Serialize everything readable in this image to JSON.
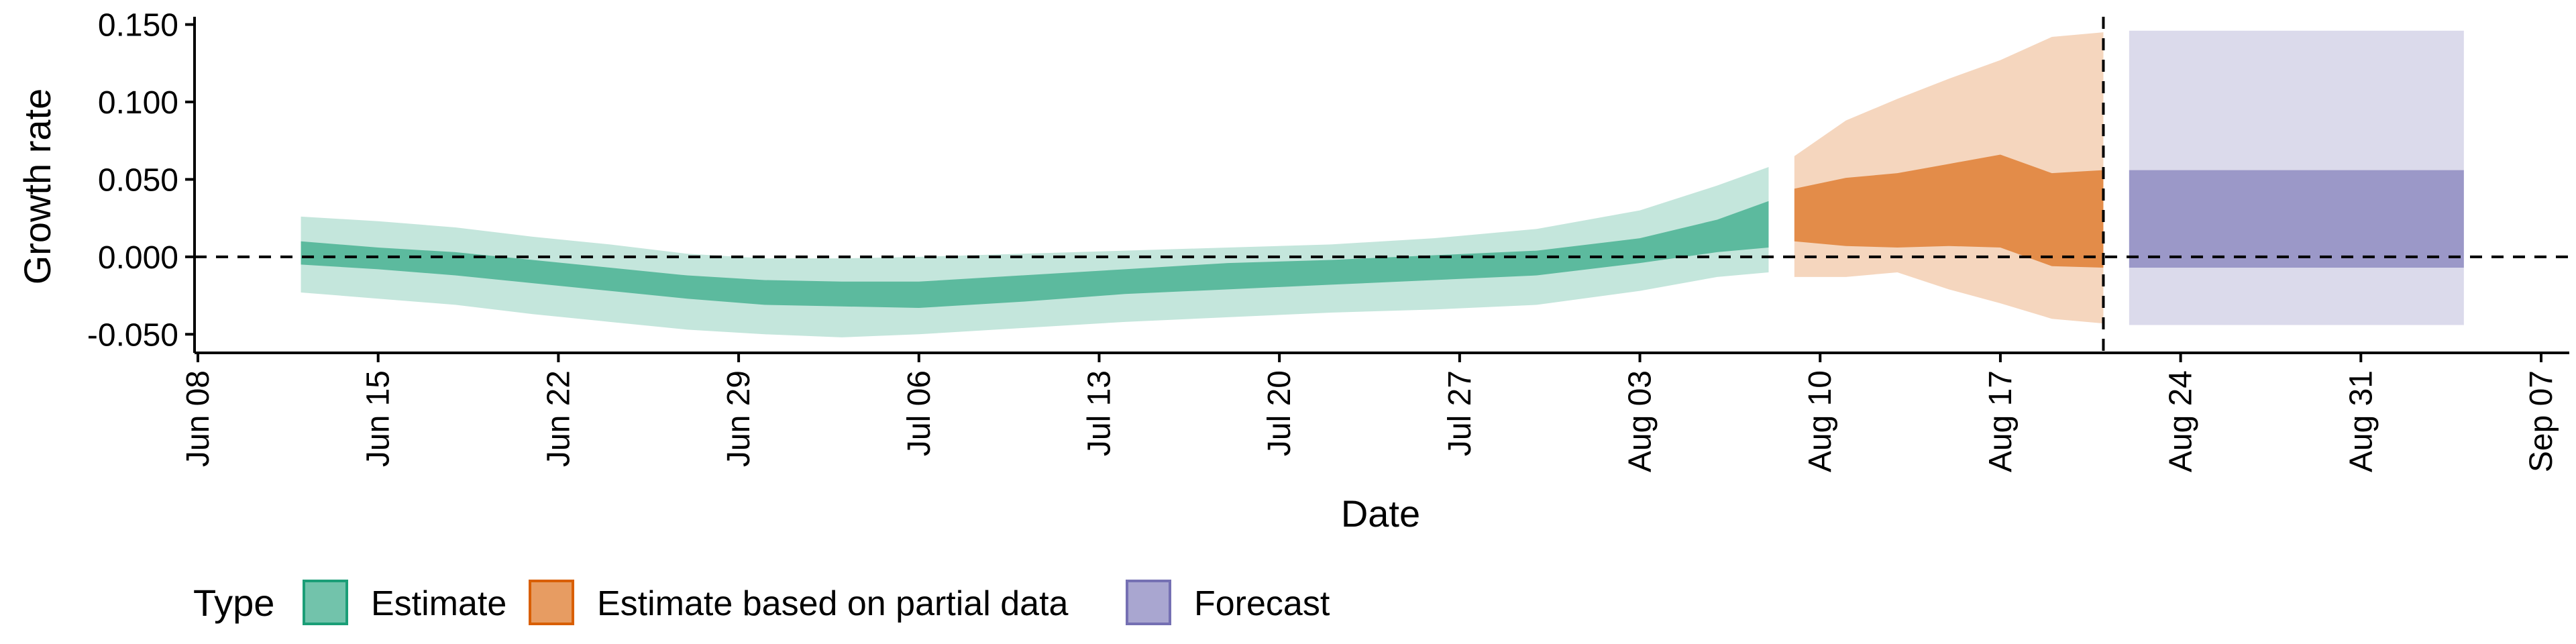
{
  "chart_data": {
    "type": "area",
    "xlabel": "Date",
    "ylabel": "Growth rate",
    "x_ticks": [
      "2020-06-08",
      "2020-06-15",
      "2020-06-22",
      "2020-06-29",
      "2020-07-06",
      "2020-07-13",
      "2020-07-20",
      "2020-07-27",
      "2020-08-03",
      "2020-08-10",
      "2020-08-17",
      "2020-08-24",
      "2020-08-31",
      "2020-09-07"
    ],
    "x_tick_labels": [
      "Jun 08",
      "Jun 15",
      "Jun 22",
      "Jun 29",
      "Jul 06",
      "Jul 13",
      "Jul 20",
      "Jul 27",
      "Aug 03",
      "Aug 10",
      "Aug 17",
      "Aug 24",
      "Aug 31",
      "Sep 07"
    ],
    "y_ticks": [
      -0.05,
      0.0,
      0.05,
      0.1,
      0.15
    ],
    "y_tick_labels": [
      "-0.050",
      "0.000",
      "0.050",
      "0.100",
      "0.150"
    ],
    "xlim": [
      "2020-06-08",
      "2020-09-07"
    ],
    "ylim": [
      -0.062,
      0.155
    ],
    "zero_line": 0.0,
    "vertical_line": "2020-08-21",
    "grid": false,
    "legend": {
      "title": "Type",
      "position": "bottom-left",
      "items": [
        {
          "label": "Estimate",
          "color": "#1b9e77"
        },
        {
          "label": "Estimate based on partial data",
          "color": "#d95f02"
        },
        {
          "label": "Forecast",
          "color": "#7570b3"
        }
      ]
    },
    "series": [
      {
        "type": "Estimate",
        "color": "#1b9e77",
        "points": [
          {
            "date": "2020-06-12",
            "lo90": -0.023,
            "lo50": -0.005,
            "hi50": 0.01,
            "hi90": 0.026
          },
          {
            "date": "2020-06-15",
            "lo90": -0.027,
            "lo50": -0.008,
            "hi50": 0.006,
            "hi90": 0.023
          },
          {
            "date": "2020-06-18",
            "lo90": -0.031,
            "lo50": -0.012,
            "hi50": 0.003,
            "hi90": 0.019
          },
          {
            "date": "2020-06-21",
            "lo90": -0.037,
            "lo50": -0.017,
            "hi50": -0.002,
            "hi90": 0.013
          },
          {
            "date": "2020-06-24",
            "lo90": -0.042,
            "lo50": -0.022,
            "hi50": -0.007,
            "hi90": 0.008
          },
          {
            "date": "2020-06-27",
            "lo90": -0.047,
            "lo50": -0.027,
            "hi50": -0.012,
            "hi90": 0.002
          },
          {
            "date": "2020-06-30",
            "lo90": -0.05,
            "lo50": -0.031,
            "hi50": -0.015,
            "hi90": -0.001
          },
          {
            "date": "2020-07-03",
            "lo90": -0.052,
            "lo50": -0.032,
            "hi50": -0.016,
            "hi90": -0.001
          },
          {
            "date": "2020-07-06",
            "lo90": -0.05,
            "lo50": -0.033,
            "hi50": -0.016,
            "hi90": 0.0
          },
          {
            "date": "2020-07-10",
            "lo90": -0.046,
            "lo50": -0.029,
            "hi50": -0.012,
            "hi90": 0.002
          },
          {
            "date": "2020-07-14",
            "lo90": -0.042,
            "lo50": -0.024,
            "hi50": -0.008,
            "hi90": 0.004
          },
          {
            "date": "2020-07-18",
            "lo90": -0.039,
            "lo50": -0.021,
            "hi50": -0.004,
            "hi90": 0.006
          },
          {
            "date": "2020-07-22",
            "lo90": -0.036,
            "lo50": -0.018,
            "hi50": -0.002,
            "hi90": 0.008
          },
          {
            "date": "2020-07-26",
            "lo90": -0.034,
            "lo50": -0.015,
            "hi50": 0.001,
            "hi90": 0.012
          },
          {
            "date": "2020-07-30",
            "lo90": -0.031,
            "lo50": -0.012,
            "hi50": 0.004,
            "hi90": 0.018
          },
          {
            "date": "2020-08-03",
            "lo90": -0.022,
            "lo50": -0.004,
            "hi50": 0.012,
            "hi90": 0.03
          },
          {
            "date": "2020-08-06",
            "lo90": -0.013,
            "lo50": 0.003,
            "hi50": 0.024,
            "hi90": 0.046
          },
          {
            "date": "2020-08-08",
            "lo90": -0.01,
            "lo50": 0.006,
            "hi50": 0.036,
            "hi90": 0.058
          }
        ]
      },
      {
        "type": "Estimate based on partial data",
        "color": "#d95f02",
        "points": [
          {
            "date": "2020-08-09",
            "lo90": -0.013,
            "lo50": 0.01,
            "hi50": 0.044,
            "hi90": 0.065
          },
          {
            "date": "2020-08-11",
            "lo90": -0.013,
            "lo50": 0.007,
            "hi50": 0.051,
            "hi90": 0.088
          },
          {
            "date": "2020-08-13",
            "lo90": -0.01,
            "lo50": 0.006,
            "hi50": 0.054,
            "hi90": 0.102
          },
          {
            "date": "2020-08-15",
            "lo90": -0.021,
            "lo50": 0.007,
            "hi50": 0.06,
            "hi90": 0.115
          },
          {
            "date": "2020-08-17",
            "lo90": -0.03,
            "lo50": 0.006,
            "hi50": 0.066,
            "hi90": 0.127
          },
          {
            "date": "2020-08-19",
            "lo90": -0.04,
            "lo50": -0.006,
            "hi50": 0.054,
            "hi90": 0.142
          },
          {
            "date": "2020-08-21",
            "lo90": -0.043,
            "lo50": -0.007,
            "hi50": 0.056,
            "hi90": 0.145
          }
        ]
      },
      {
        "type": "Forecast",
        "color": "#7570b3",
        "points": [
          {
            "date": "2020-08-22",
            "lo90": -0.044,
            "lo50": -0.007,
            "hi50": 0.056,
            "hi90": 0.146
          },
          {
            "date": "2020-09-04",
            "lo90": -0.044,
            "lo50": -0.007,
            "hi50": 0.056,
            "hi90": 0.146
          }
        ]
      }
    ]
  }
}
